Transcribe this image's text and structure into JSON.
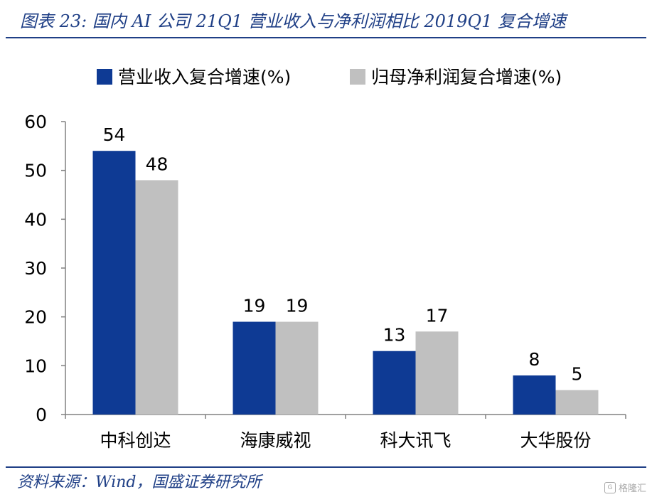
{
  "figure_title": "图表 23:  国内 AI 公司 21Q1 营业收入与净利润相比 2019Q1 复合增速",
  "source_note": "资料来源：Wind，国盛证券研究所",
  "watermark": {
    "text": "格隆汇",
    "icon": "gelonghui-logo-icon"
  },
  "colors": {
    "series_1": "#0e3a94",
    "series_2": "#c0c0c0",
    "title": "#1f3f86",
    "axis": "#808080"
  },
  "chart_data": {
    "type": "bar",
    "categories": [
      "中科创达",
      "海康威视",
      "科大讯飞",
      "大华股份"
    ],
    "series": [
      {
        "name": "营业收入复合增速(%)",
        "values": [
          54,
          19,
          13,
          8
        ],
        "value_labels": [
          "54",
          "19",
          "13",
          "8"
        ]
      },
      {
        "name": "归母净利润复合增速(%)",
        "values": [
          48,
          19,
          17,
          5
        ],
        "value_labels": [
          "48",
          "19",
          "17",
          "5"
        ]
      }
    ],
    "ylim": [
      0,
      60
    ],
    "yticks": [
      0,
      10,
      20,
      30,
      40,
      50,
      60
    ],
    "xlabel": "",
    "ylabel": "",
    "grid": false,
    "legend_position": "top"
  }
}
